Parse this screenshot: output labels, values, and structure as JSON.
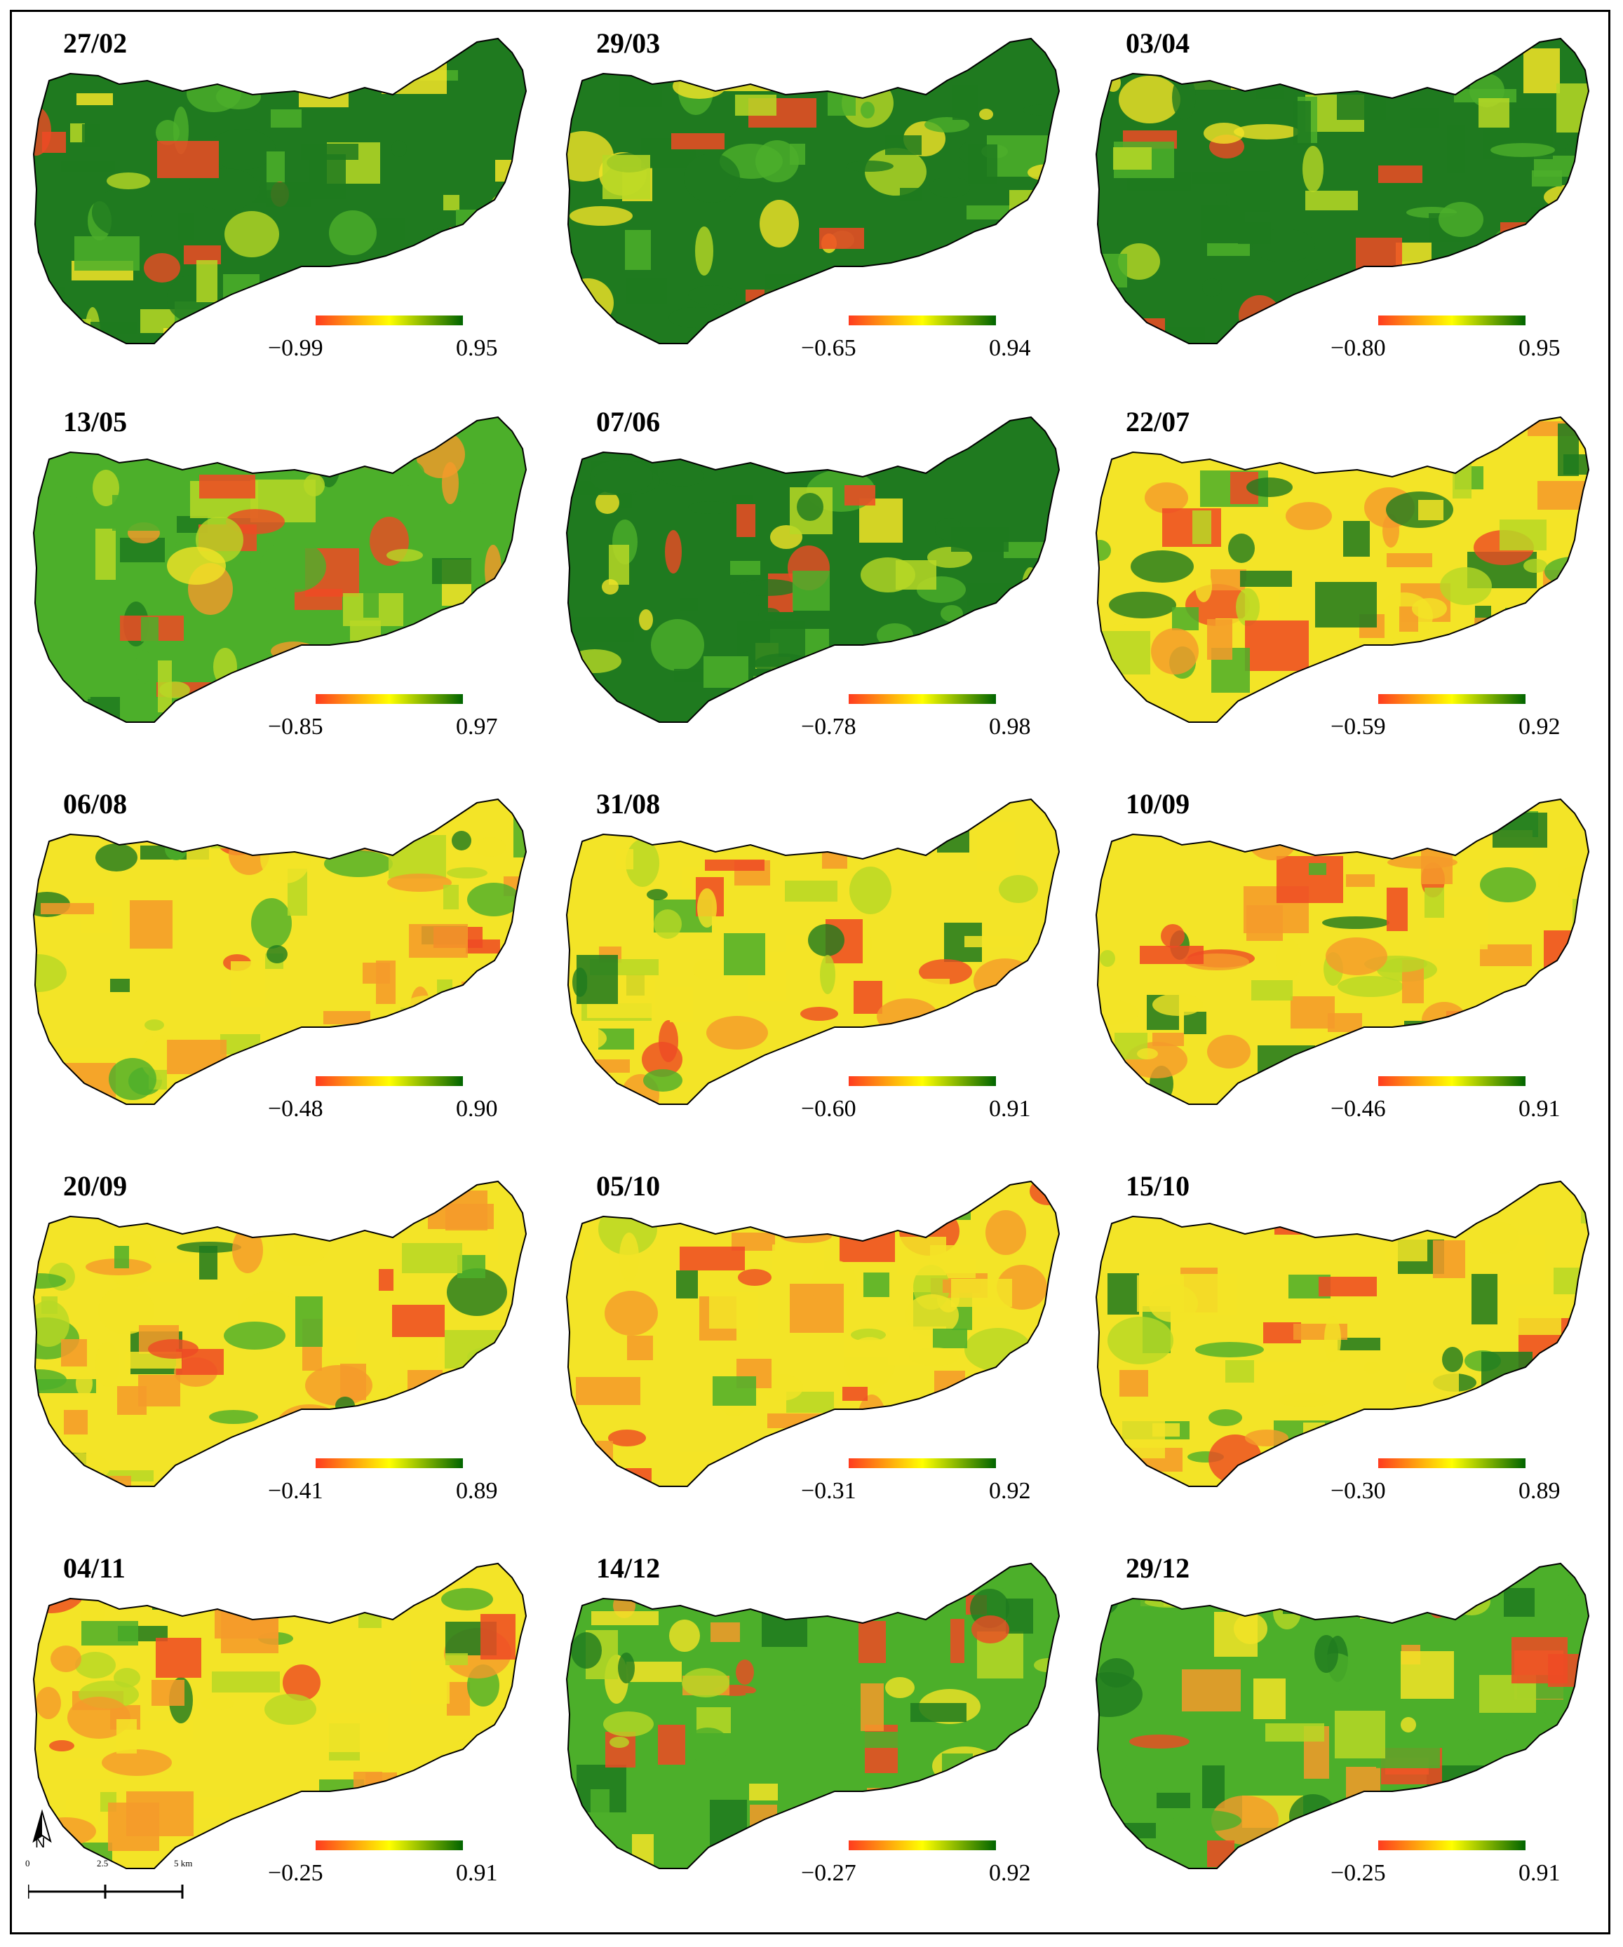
{
  "panels": [
    {
      "date": "27/02",
      "min": "−0.99",
      "max": "0.95",
      "state": "green"
    },
    {
      "date": "29/03",
      "min": "−0.65",
      "max": "0.94",
      "state": "green"
    },
    {
      "date": "03/04",
      "min": "−0.80",
      "max": "0.95",
      "state": "green"
    },
    {
      "date": "13/05",
      "min": "−0.85",
      "max": "0.97",
      "state": "mixed-green"
    },
    {
      "date": "07/06",
      "min": "−0.78",
      "max": "0.98",
      "state": "green"
    },
    {
      "date": "22/07",
      "min": "−0.59",
      "max": "0.92",
      "state": "dry"
    },
    {
      "date": "06/08",
      "min": "−0.48",
      "max": "0.90",
      "state": "dry"
    },
    {
      "date": "31/08",
      "min": "−0.60",
      "max": "0.91",
      "state": "dry"
    },
    {
      "date": "10/09",
      "min": "−0.46",
      "max": "0.91",
      "state": "dry"
    },
    {
      "date": "20/09",
      "min": "−0.41",
      "max": "0.89",
      "state": "dry"
    },
    {
      "date": "05/10",
      "min": "−0.31",
      "max": "0.92",
      "state": "dry"
    },
    {
      "date": "15/10",
      "min": "−0.30",
      "max": "0.89",
      "state": "dry"
    },
    {
      "date": "04/11",
      "min": "−0.25",
      "max": "0.91",
      "state": "dry"
    },
    {
      "date": "14/12",
      "min": "−0.27",
      "max": "0.92",
      "state": "mixed-green"
    },
    {
      "date": "29/12",
      "min": "−0.25",
      "max": "0.91",
      "state": "mixed-green"
    }
  ],
  "colors": {
    "ramp_low": "#ff3b1f",
    "ramp_mid": "#ffff00",
    "ramp_high": "#006400",
    "dark_green": "#1f7a1f",
    "green": "#4caf2a",
    "yellow_green": "#b7d826",
    "yellow": "#f3e427",
    "orange": "#f59a2a",
    "red": "#ee4a24"
  },
  "north_arrow": {
    "label": "N",
    "icon": "north-arrow-icon"
  },
  "scale_bar": {
    "labels": [
      "0",
      "2.5",
      "5 km"
    ]
  }
}
